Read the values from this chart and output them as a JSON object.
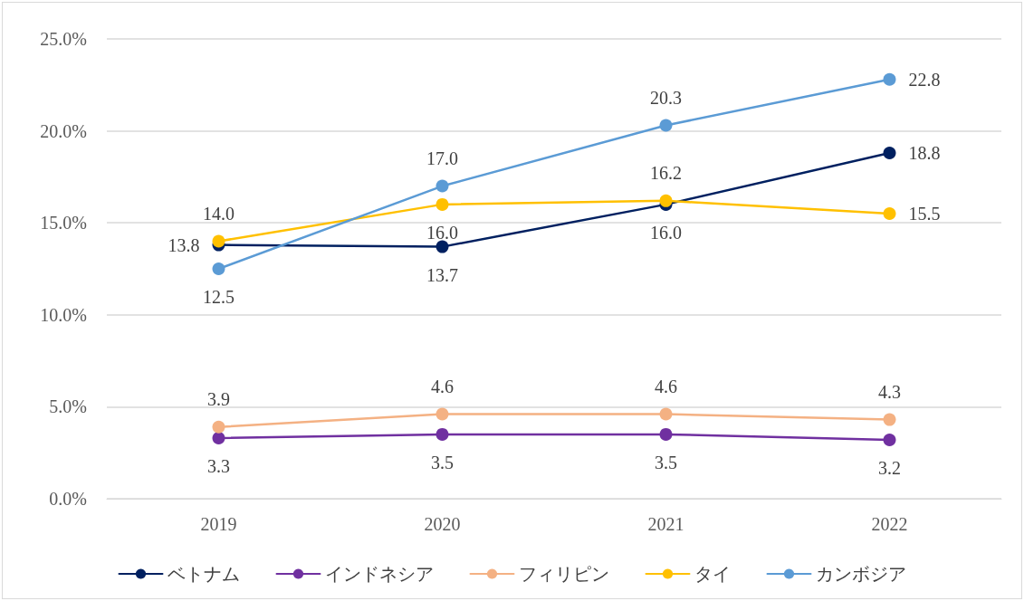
{
  "chart_data": {
    "type": "line",
    "categories": [
      "2019",
      "2020",
      "2021",
      "2022"
    ],
    "series": [
      {
        "name": "ベトナム",
        "color": "#002060",
        "values": [
          13.8,
          13.7,
          16.0,
          18.8
        ],
        "value_labels": [
          "13.8",
          "13.7",
          "16.0",
          "18.8"
        ]
      },
      {
        "name": "インドネシア",
        "color": "#7030a0",
        "values": [
          3.3,
          3.5,
          3.5,
          3.2
        ],
        "value_labels": [
          "3.3",
          "3.5",
          "3.5",
          "3.2"
        ]
      },
      {
        "name": "フィリピン",
        "color": "#f4b183",
        "values": [
          3.9,
          4.6,
          4.6,
          4.3
        ],
        "value_labels": [
          "3.9",
          "4.6",
          "4.6",
          "4.3"
        ]
      },
      {
        "name": "タイ",
        "color": "#ffc000",
        "values": [
          14.0,
          16.0,
          16.2,
          15.5
        ],
        "value_labels": [
          "14.0",
          "16.0",
          "16.2",
          "15.5"
        ]
      },
      {
        "name": "カンボジア",
        "color": "#5b9bd5",
        "values": [
          12.5,
          17.0,
          20.3,
          22.8
        ],
        "value_labels": [
          "12.5",
          "17.0",
          "20.3",
          "22.8"
        ]
      }
    ],
    "ylim": [
      0,
      25
    ],
    "yticks": [
      {
        "value": 0,
        "label": "0.0%"
      },
      {
        "value": 5,
        "label": "5.0%"
      },
      {
        "value": 10,
        "label": "10.0%"
      },
      {
        "value": 15,
        "label": "15.0%"
      },
      {
        "value": 20,
        "label": "20.0%"
      },
      {
        "value": 25,
        "label": "25.0%"
      }
    ],
    "grid": "y",
    "legend": "bottom",
    "marker": "circle",
    "line_style": "solid"
  }
}
